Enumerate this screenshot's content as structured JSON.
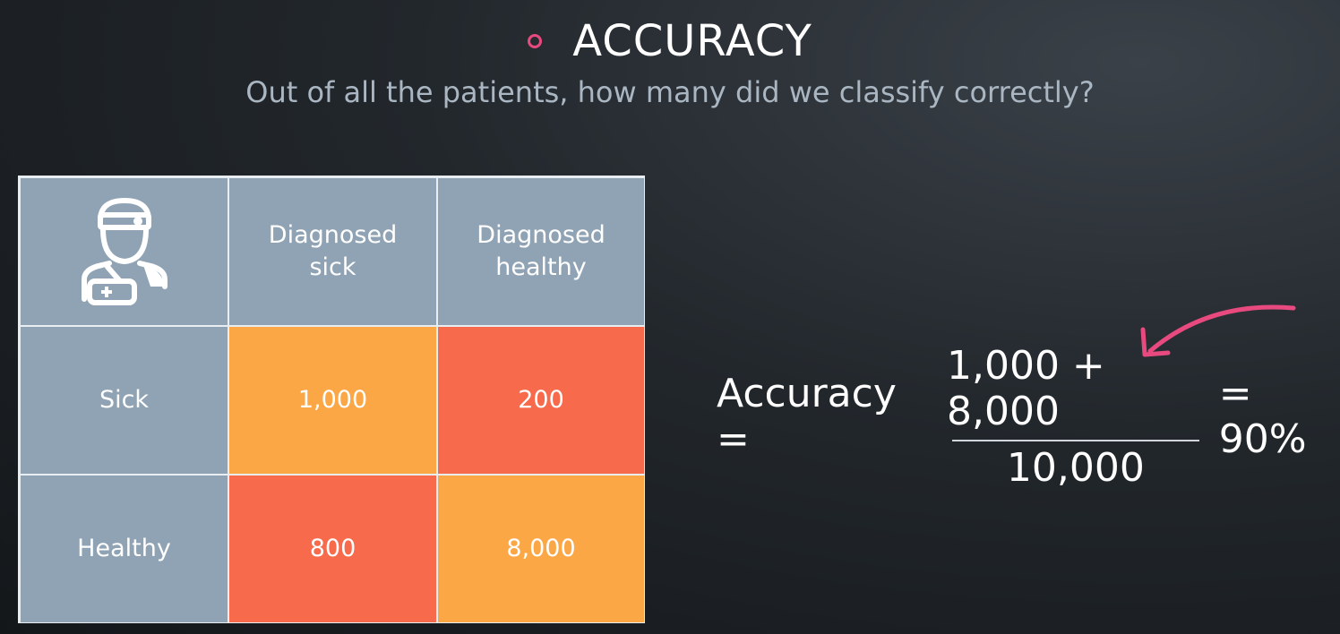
{
  "header": {
    "title": "ACCURACY",
    "subtitle": "Out of all the patients, how many did we classify correctly?"
  },
  "matrix": {
    "column_headers": [
      "Diagnosed\nsick",
      "Diagnosed\nhealthy"
    ],
    "rows": [
      {
        "label": "Sick",
        "values": [
          "1,000",
          "200"
        ]
      },
      {
        "label": "Healthy",
        "values": [
          "800",
          "8,000"
        ]
      }
    ],
    "corner_icon": "doctor-icon"
  },
  "formula": {
    "lhs": "Accuracy =",
    "numerator": "1,000 + 8,000",
    "denominator": "10,000",
    "result": "= 90%"
  },
  "colors": {
    "accent": "#e84a7f",
    "header_cell": "#8fa3b4",
    "correct_cell": "#fba746",
    "incorrect_cell": "#f76a4c"
  }
}
